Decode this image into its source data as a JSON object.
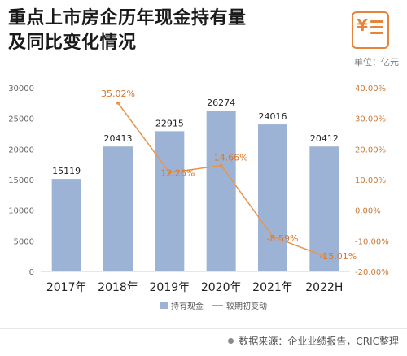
{
  "header": {
    "title_line1": "重点上市房企历年现金持有量",
    "title_line2": "及同比变化情况",
    "unit": "单位：亿元",
    "logo_icon": "yen-document-icon"
  },
  "footer": {
    "source": "数据来源：企业业绩报告，CRIC整理"
  },
  "chart_data": {
    "type": "bar",
    "categories": [
      "2017年",
      "2018年",
      "2019年",
      "2020年",
      "2021年",
      "2022H"
    ],
    "series": [
      {
        "name": "持有现金",
        "type": "bar",
        "axis": "left",
        "color": "#9db3d6",
        "values": [
          15119,
          20413,
          22915,
          26274,
          24016,
          20412
        ],
        "labels": [
          "15119",
          "20413",
          "22915",
          "26274",
          "24016",
          "20412"
        ]
      },
      {
        "name": "较期初变动",
        "type": "line",
        "axis": "right",
        "color": "#e8944a",
        "values": [
          null,
          35.02,
          12.26,
          14.66,
          -8.59,
          -15.01
        ],
        "labels": [
          "",
          "35.02%",
          "12.26%",
          "14.66%",
          "-8.59%",
          "-15.01%"
        ]
      }
    ],
    "y_left": {
      "min": 0,
      "max": 30000,
      "ticks": [
        "0",
        "5000",
        "10000",
        "15000",
        "20000",
        "25000",
        "30000"
      ],
      "tick_values": [
        0,
        5000,
        10000,
        15000,
        20000,
        25000,
        30000
      ]
    },
    "y_right": {
      "min": -20,
      "max": 40,
      "ticks": [
        "-20.00%",
        "-10.00%",
        "0.00%",
        "10.00%",
        "20.00%",
        "30.00%",
        "40.00%"
      ],
      "tick_values": [
        -20,
        -10,
        0,
        10,
        20,
        30,
        40
      ]
    },
    "grid": false,
    "legend_position": "bottom"
  }
}
